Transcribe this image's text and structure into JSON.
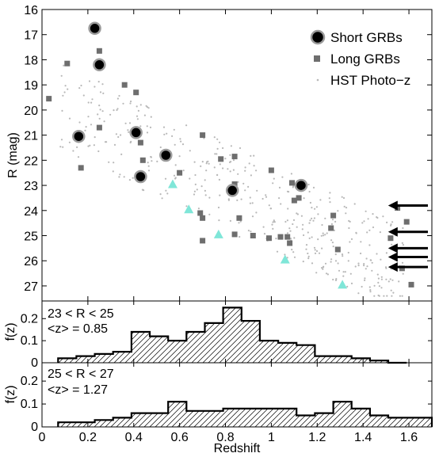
{
  "colors": {
    "short_fill": "#000000",
    "short_ring": "#9a9a9a",
    "long": "#6e6e6e",
    "photoz": "#b8b8b8",
    "triangle": "#7fe6d8",
    "hist_line": "#000000"
  },
  "chart_data": [
    {
      "type": "scatter",
      "panel": "main",
      "xlabel": "",
      "ylabel": "R  (mag)",
      "xlim": [
        0,
        1.7
      ],
      "ylim": [
        27.6,
        16.0
      ],
      "y_inverted": true,
      "y_ticks": [
        16,
        17,
        18,
        19,
        20,
        21,
        22,
        23,
        24,
        25,
        26,
        27
      ],
      "legend": {
        "position": "top-right",
        "entries": [
          {
            "label": "Short GRBs",
            "marker": "circle-icon"
          },
          {
            "label": "Long GRBs",
            "marker": "square-icon"
          },
          {
            "label": "HST Photo−z",
            "marker": "dot-icon"
          }
        ]
      },
      "series": [
        {
          "name": "Short GRBs",
          "marker": "circle",
          "points": [
            [
              0.23,
              16.75
            ],
            [
              0.25,
              18.2
            ],
            [
              0.16,
              21.05
            ],
            [
              0.41,
              20.9
            ],
            [
              0.54,
              21.8
            ],
            [
              0.43,
              22.65
            ],
            [
              0.83,
              23.2
            ],
            [
              1.13,
              23.0
            ]
          ]
        },
        {
          "name": "Long GRBs",
          "marker": "square",
          "points": [
            [
              0.03,
              19.55
            ],
            [
              0.11,
              18.15
            ],
            [
              0.17,
              22.3
            ],
            [
              0.25,
              17.65
            ],
            [
              0.25,
              20.7
            ],
            [
              0.36,
              19.0
            ],
            [
              0.41,
              19.3
            ],
            [
              0.43,
              21.3
            ],
            [
              0.44,
              22.0
            ],
            [
              0.6,
              22.5
            ],
            [
              0.69,
              24.1
            ],
            [
              0.7,
              24.3
            ],
            [
              0.7,
              25.2
            ],
            [
              0.7,
              21.0
            ],
            [
              0.78,
              21.95
            ],
            [
              0.84,
              22.95
            ],
            [
              0.84,
              21.85
            ],
            [
              0.84,
              24.95
            ],
            [
              0.86,
              24.3
            ],
            [
              0.92,
              25.0
            ],
            [
              0.99,
              25.1
            ],
            [
              1.0,
              22.4
            ],
            [
              1.04,
              25.05
            ],
            [
              1.08,
              25.3
            ],
            [
              1.07,
              25.05
            ],
            [
              1.09,
              22.9
            ],
            [
              1.1,
              23.6
            ],
            [
              1.12,
              23.5
            ],
            [
              1.26,
              24.7
            ],
            [
              1.27,
              24.2
            ],
            [
              1.29,
              25.55
            ],
            [
              1.52,
              25.1
            ],
            [
              1.55,
              23.9
            ],
            [
              1.57,
              26.3
            ],
            [
              1.59,
              24.45
            ],
            [
              1.61,
              26.95
            ]
          ]
        },
        {
          "name": "",
          "marker": "triangle",
          "points": [
            [
              0.57,
              22.95
            ],
            [
              0.64,
              23.95
            ],
            [
              0.77,
              24.95
            ],
            [
              1.06,
              25.95
            ],
            [
              1.31,
              26.95
            ]
          ]
        }
      ],
      "upper_limits": [
        {
          "x": 1.53,
          "y": 23.8
        },
        {
          "x": 1.53,
          "y": 24.85
        },
        {
          "x": 1.53,
          "y": 25.5
        },
        {
          "x": 1.53,
          "y": 25.85
        },
        {
          "x": 1.53,
          "y": 26.25
        }
      ]
    },
    {
      "type": "histogram",
      "panel": "middle",
      "ylabel": "f(z)",
      "xlim": [
        0,
        1.7
      ],
      "ylim": [
        0,
        0.28
      ],
      "y_ticks": [
        0,
        0.1,
        0.2
      ],
      "y_tick_labels": [
        "0",
        "0.1",
        "0.2"
      ],
      "annotation_lines": [
        "23 < R < 25",
        "<z> = 0.85"
      ],
      "bin_edges": [
        0.07,
        0.15,
        0.23,
        0.31,
        0.39,
        0.47,
        0.55,
        0.63,
        0.71,
        0.79,
        0.87,
        0.95,
        1.03,
        1.11,
        1.19,
        1.27,
        1.35,
        1.43,
        1.51,
        1.59
      ],
      "values": [
        0.02,
        0.03,
        0.04,
        0.05,
        0.14,
        0.12,
        0.1,
        0.14,
        0.18,
        0.25,
        0.19,
        0.1,
        0.09,
        0.08,
        0.03,
        0.03,
        0.02,
        0.01,
        0.0
      ]
    },
    {
      "type": "histogram",
      "panel": "bottom",
      "ylabel": "f(z)",
      "xlabel": "Redshift",
      "xlim": [
        0,
        1.7
      ],
      "ylim": [
        0,
        0.28
      ],
      "y_ticks": [
        0,
        0.1,
        0.2
      ],
      "y_tick_labels": [
        "0",
        "0.1",
        "0.2"
      ],
      "x_ticks": [
        0,
        0.2,
        0.4,
        0.6,
        0.8,
        1,
        1.2,
        1.4,
        1.6
      ],
      "x_tick_labels": [
        "0",
        "0.2",
        "0.4",
        "0.6",
        "0.8",
        "1",
        "1.2",
        "1.4",
        "1.6"
      ],
      "annotation_lines": [
        "25 < R < 27",
        "<z> = 1.27"
      ],
      "bin_edges": [
        0.07,
        0.15,
        0.23,
        0.31,
        0.39,
        0.47,
        0.55,
        0.63,
        0.71,
        0.79,
        0.87,
        0.95,
        1.03,
        1.11,
        1.19,
        1.27,
        1.35,
        1.43,
        1.51,
        1.59,
        1.7
      ],
      "values": [
        0.02,
        0.02,
        0.03,
        0.04,
        0.06,
        0.06,
        0.11,
        0.07,
        0.07,
        0.08,
        0.08,
        0.08,
        0.08,
        0.05,
        0.06,
        0.11,
        0.08,
        0.05,
        0.04,
        0.04
      ]
    }
  ]
}
